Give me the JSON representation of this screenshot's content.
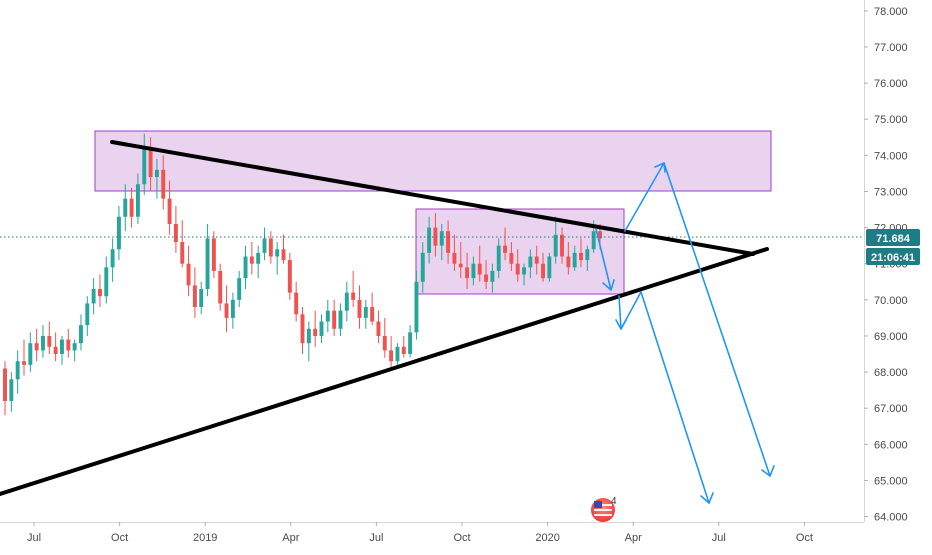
{
  "chart_data": {
    "type": "candlestick",
    "x_labels": [
      "Jul",
      "Oct",
      "2019",
      "Apr",
      "Jul",
      "Oct",
      "2020",
      "Apr",
      "Jul",
      "Oct"
    ],
    "y_ticks": [
      "64.000",
      "65.000",
      "66.000",
      "67.000",
      "68.000",
      "69.000",
      "70.000",
      "71.000",
      "72.000",
      "73.000",
      "74.000",
      "75.000",
      "76.000",
      "77.000",
      "78.000"
    ],
    "ylim": [
      63.85,
      78.3
    ],
    "price_line": {
      "value": 71.684,
      "label": "71.684"
    },
    "countdown": "21:06:41",
    "event_badge_count": "4",
    "colors": {
      "up": "#26a69a",
      "down": "#ef5350",
      "trendline": "#000000",
      "zone_fill": "#e9d3ef",
      "zone_border": "#a23cc4",
      "projection": "#2196f3",
      "price_label_bg": "#1e7d84",
      "badge": "#ef5350"
    },
    "ohlc": [
      [
        68.1,
        68.3,
        66.8,
        67.2
      ],
      [
        67.2,
        68.0,
        66.9,
        67.8
      ],
      [
        67.8,
        68.6,
        67.4,
        68.3
      ],
      [
        68.3,
        68.9,
        67.9,
        68.2
      ],
      [
        68.2,
        69.1,
        68.0,
        68.8
      ],
      [
        68.8,
        69.2,
        68.3,
        68.6
      ],
      [
        68.6,
        69.3,
        68.4,
        69.0
      ],
      [
        69.0,
        69.4,
        68.5,
        68.7
      ],
      [
        68.7,
        69.1,
        68.3,
        68.5
      ],
      [
        68.5,
        69.0,
        68.2,
        68.9
      ],
      [
        68.9,
        69.2,
        68.4,
        68.6
      ],
      [
        68.6,
        68.9,
        68.3,
        68.8
      ],
      [
        68.8,
        69.6,
        68.6,
        69.3
      ],
      [
        69.3,
        70.1,
        69.0,
        69.9
      ],
      [
        69.9,
        70.6,
        69.6,
        70.3
      ],
      [
        70.3,
        70.7,
        69.8,
        70.1
      ],
      [
        70.1,
        71.2,
        69.9,
        70.9
      ],
      [
        70.9,
        71.7,
        70.5,
        71.4
      ],
      [
        71.4,
        72.6,
        71.1,
        72.3
      ],
      [
        72.3,
        73.2,
        71.9,
        72.8
      ],
      [
        72.8,
        73.1,
        72.0,
        72.3
      ],
      [
        72.3,
        73.5,
        72.1,
        73.2
      ],
      [
        73.2,
        74.6,
        72.9,
        74.2
      ],
      [
        74.2,
        74.5,
        73.0,
        73.4
      ],
      [
        73.4,
        73.9,
        72.8,
        73.6
      ],
      [
        73.6,
        74.0,
        72.5,
        72.8
      ],
      [
        72.8,
        73.3,
        71.8,
        72.1
      ],
      [
        72.1,
        72.6,
        71.3,
        71.6
      ],
      [
        71.6,
        72.2,
        70.9,
        71.0
      ],
      [
        71.0,
        71.5,
        70.1,
        70.4
      ],
      [
        70.4,
        70.9,
        69.5,
        69.8
      ],
      [
        69.8,
        70.5,
        69.6,
        70.3
      ],
      [
        70.3,
        72.1,
        70.1,
        71.7
      ],
      [
        71.7,
        71.9,
        70.6,
        70.8
      ],
      [
        70.8,
        71.0,
        69.7,
        69.9
      ],
      [
        69.9,
        70.4,
        69.1,
        69.5
      ],
      [
        69.5,
        70.2,
        69.2,
        70.0
      ],
      [
        70.0,
        70.8,
        69.8,
        70.6
      ],
      [
        70.6,
        71.5,
        70.3,
        71.2
      ],
      [
        71.2,
        71.6,
        70.7,
        71.0
      ],
      [
        71.0,
        71.5,
        70.6,
        71.3
      ],
      [
        71.3,
        72.0,
        71.1,
        71.7
      ],
      [
        71.7,
        71.9,
        71.0,
        71.2
      ],
      [
        71.2,
        71.6,
        70.7,
        71.4
      ],
      [
        71.4,
        71.8,
        71.0,
        71.1
      ],
      [
        71.1,
        71.3,
        70.0,
        70.2
      ],
      [
        70.2,
        70.5,
        69.4,
        69.6
      ],
      [
        69.6,
        69.8,
        68.5,
        68.8
      ],
      [
        68.8,
        69.4,
        68.3,
        69.2
      ],
      [
        69.2,
        69.7,
        68.7,
        69.0
      ],
      [
        69.0,
        69.6,
        68.8,
        69.4
      ],
      [
        69.4,
        70.0,
        69.1,
        69.7
      ],
      [
        69.7,
        70.0,
        69.0,
        69.2
      ],
      [
        69.2,
        69.9,
        69.0,
        69.7
      ],
      [
        69.7,
        70.5,
        69.4,
        70.2
      ],
      [
        70.2,
        70.8,
        69.8,
        70.0
      ],
      [
        70.0,
        70.4,
        69.2,
        69.5
      ],
      [
        69.5,
        70.0,
        69.2,
        69.8
      ],
      [
        69.8,
        70.2,
        69.3,
        69.4
      ],
      [
        69.4,
        69.7,
        68.8,
        69.0
      ],
      [
        69.0,
        69.5,
        68.4,
        68.6
      ],
      [
        68.6,
        69.0,
        68.1,
        68.3
      ],
      [
        68.3,
        68.8,
        68.2,
        68.7
      ],
      [
        68.7,
        69.0,
        68.4,
        68.5
      ],
      [
        68.5,
        69.3,
        68.4,
        69.1
      ],
      [
        69.1,
        70.8,
        68.9,
        70.5
      ],
      [
        70.5,
        71.6,
        70.2,
        71.3
      ],
      [
        71.3,
        72.3,
        71.0,
        72.0
      ],
      [
        72.0,
        72.4,
        71.2,
        71.5
      ],
      [
        71.5,
        72.1,
        71.1,
        71.9
      ],
      [
        71.9,
        72.2,
        71.0,
        71.3
      ],
      [
        71.3,
        71.8,
        70.8,
        71.0
      ],
      [
        71.0,
        71.6,
        70.6,
        70.9
      ],
      [
        70.9,
        71.3,
        70.3,
        70.6
      ],
      [
        70.6,
        71.2,
        70.4,
        71.0
      ],
      [
        71.0,
        71.5,
        70.5,
        70.7
      ],
      [
        70.7,
        71.1,
        70.3,
        70.5
      ],
      [
        70.5,
        71.0,
        70.2,
        70.8
      ],
      [
        70.8,
        71.7,
        70.6,
        71.5
      ],
      [
        71.5,
        72.0,
        71.1,
        71.3
      ],
      [
        71.3,
        71.6,
        70.8,
        71.0
      ],
      [
        71.0,
        71.4,
        70.5,
        70.7
      ],
      [
        70.7,
        71.0,
        70.4,
        70.9
      ],
      [
        70.9,
        71.4,
        70.6,
        71.2
      ],
      [
        71.2,
        71.5,
        70.7,
        71.0
      ],
      [
        71.0,
        71.3,
        70.5,
        70.6
      ],
      [
        70.6,
        71.3,
        70.5,
        71.2
      ],
      [
        71.2,
        72.3,
        71.0,
        71.8
      ],
      [
        71.8,
        72.0,
        71.0,
        71.2
      ],
      [
        71.2,
        71.6,
        70.7,
        70.9
      ],
      [
        70.9,
        71.5,
        70.8,
        71.3
      ],
      [
        71.3,
        71.7,
        70.9,
        71.1
      ],
      [
        71.1,
        71.5,
        70.8,
        71.4
      ],
      [
        71.4,
        72.2,
        71.3,
        71.9
      ],
      [
        71.9,
        72.1,
        71.4,
        71.7
      ]
    ]
  }
}
